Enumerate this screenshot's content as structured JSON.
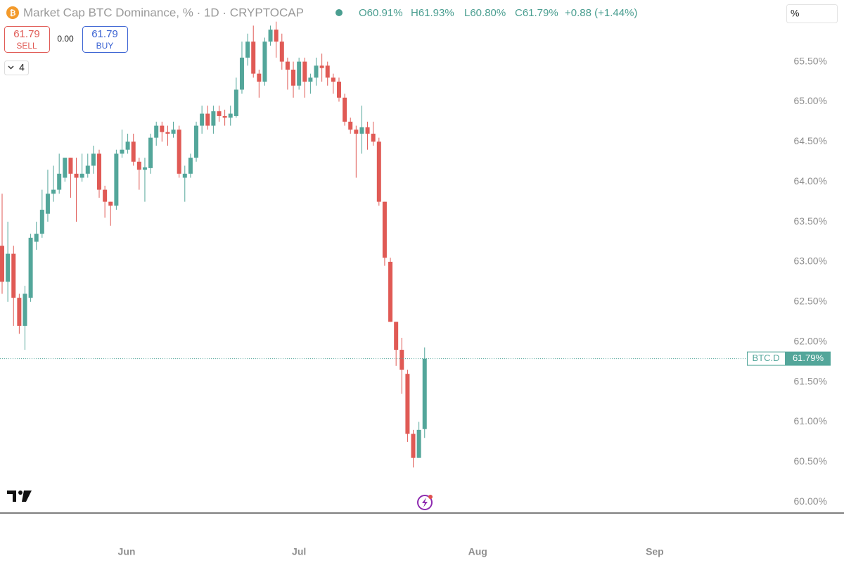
{
  "header": {
    "title": "Market Cap BTC Dominance, % · 1D · CRYPTOCAP",
    "ohlc": [
      "O60.91%",
      "H61.93%",
      "L60.80%",
      "C61.79%",
      "+0.88 (+1.44%)"
    ],
    "sell_price": "61.79",
    "sell_label": "SELL",
    "spread": "0.00",
    "buy_price": "61.79",
    "buy_label": "BUY",
    "indicators": "4",
    "scale_mode": "%"
  },
  "chart_data": {
    "type": "candlestick",
    "up_color": "#53a69a",
    "down_color": "#e05a55",
    "open": [
      63.2,
      62.75,
      63.1,
      62.55,
      62.2,
      62.55,
      63.25,
      63.35,
      63.6,
      63.85,
      63.9,
      64.05,
      64.3,
      64.1,
      64.05,
      64.1,
      64.2,
      64.35,
      63.9,
      63.75,
      63.7,
      64.35,
      64.4,
      64.5,
      64.25,
      64.15,
      64.17,
      64.55,
      64.7,
      64.62,
      64.6,
      64.65,
      64.05,
      64.1,
      64.3,
      64.7,
      64.85,
      64.7,
      64.88,
      64.82,
      64.8,
      64.82,
      65.15,
      65.55,
      65.75,
      65.35,
      65.25,
      65.75,
      65.9,
      65.75,
      65.5,
      65.4,
      65.2,
      65.5,
      65.25,
      65.3,
      65.45,
      65.45,
      65.3,
      65.25,
      65.05,
      64.75,
      64.65,
      64.6,
      64.68,
      64.6,
      64.5,
      63.75,
      63.0,
      62.25,
      61.9,
      61.6,
      60.85,
      60.55,
      60.91
    ],
    "high": [
      63.85,
      63.5,
      63.2,
      62.6,
      62.7,
      63.35,
      63.5,
      63.9,
      64.15,
      64.2,
      64.35,
      64.3,
      64.3,
      64.3,
      64.35,
      64.35,
      64.45,
      64.4,
      63.95,
      63.75,
      64.4,
      64.65,
      64.6,
      64.6,
      64.3,
      64.3,
      64.6,
      64.75,
      64.75,
      64.7,
      64.75,
      64.7,
      64.2,
      64.35,
      64.75,
      64.95,
      64.95,
      64.95,
      64.95,
      64.9,
      64.95,
      65.3,
      65.75,
      65.85,
      65.95,
      65.4,
      65.8,
      65.95,
      66.0,
      65.85,
      65.55,
      65.5,
      65.55,
      65.55,
      65.35,
      65.55,
      65.6,
      65.5,
      65.35,
      65.3,
      65.1,
      64.8,
      64.7,
      64.95,
      64.75,
      64.75,
      64.55,
      63.75,
      63.05,
      62.25,
      62.05,
      61.65,
      60.9,
      61.0,
      61.93
    ],
    "low": [
      62.6,
      62.5,
      62.2,
      62.1,
      61.9,
      62.5,
      63.15,
      63.3,
      63.5,
      63.75,
      63.85,
      64.0,
      63.8,
      63.5,
      64.0,
      64.05,
      64.1,
      63.8,
      63.55,
      63.45,
      63.65,
      64.3,
      64.35,
      64.2,
      63.9,
      63.75,
      64.1,
      64.45,
      64.5,
      64.45,
      64.55,
      64.05,
      63.75,
      64.05,
      64.25,
      64.6,
      64.65,
      64.6,
      64.75,
      64.7,
      64.7,
      64.8,
      65.1,
      65.45,
      65.3,
      65.05,
      65.2,
      65.7,
      65.55,
      65.4,
      65.15,
      65.05,
      65.15,
      65.05,
      65.1,
      65.2,
      65.25,
      65.2,
      65.1,
      65.0,
      64.7,
      64.6,
      64.05,
      64.35,
      64.4,
      64.45,
      63.7,
      62.95,
      62.25,
      61.7,
      61.35,
      60.75,
      60.43,
      60.55,
      60.8
    ],
    "close": [
      62.75,
      63.1,
      62.55,
      62.2,
      62.6,
      63.3,
      63.35,
      63.65,
      63.85,
      63.9,
      64.1,
      64.3,
      64.1,
      64.05,
      64.1,
      64.2,
      64.35,
      63.9,
      63.75,
      63.7,
      64.35,
      64.4,
      64.5,
      64.25,
      64.15,
      64.18,
      64.55,
      64.7,
      64.62,
      64.6,
      64.65,
      64.1,
      64.1,
      64.3,
      64.7,
      64.85,
      64.7,
      64.88,
      64.82,
      64.8,
      64.85,
      65.15,
      65.55,
      65.75,
      65.35,
      65.25,
      65.75,
      65.9,
      65.75,
      65.5,
      65.4,
      65.2,
      65.5,
      65.25,
      65.3,
      65.45,
      65.42,
      65.3,
      65.25,
      65.05,
      64.75,
      64.65,
      64.6,
      64.68,
      64.6,
      64.5,
      63.75,
      63.05,
      62.25,
      61.9,
      61.65,
      60.85,
      60.55,
      60.9,
      61.79
    ],
    "xlim": [
      -0.37,
      130.2
    ],
    "xticks": [
      {
        "value": 21.8,
        "label": "Jun"
      },
      {
        "value": 52.0,
        "label": "Jul"
      },
      {
        "value": 83.3,
        "label": "Aug"
      },
      {
        "value": 114.3,
        "label": "Sep"
      }
    ],
    "ylim": [
      59.87,
      66.27
    ],
    "yticks": [
      {
        "value": 60.0,
        "label": "60.00%"
      },
      {
        "value": 60.5,
        "label": "60.50%"
      },
      {
        "value": 61.0,
        "label": "61.00%"
      },
      {
        "value": 61.5,
        "label": "61.50%"
      },
      {
        "value": 62.0,
        "label": "62.00%"
      },
      {
        "value": 62.5,
        "label": "62.50%"
      },
      {
        "value": 63.0,
        "label": "63.00%"
      },
      {
        "value": 63.5,
        "label": "63.50%"
      },
      {
        "value": 64.0,
        "label": "64.00%"
      },
      {
        "value": 64.5,
        "label": "64.50%"
      },
      {
        "value": 65.0,
        "label": "65.00%"
      },
      {
        "value": 65.5,
        "label": "65.50%"
      }
    ],
    "price_tag": {
      "symbol": "BTC.D",
      "label": "61.79%"
    }
  }
}
